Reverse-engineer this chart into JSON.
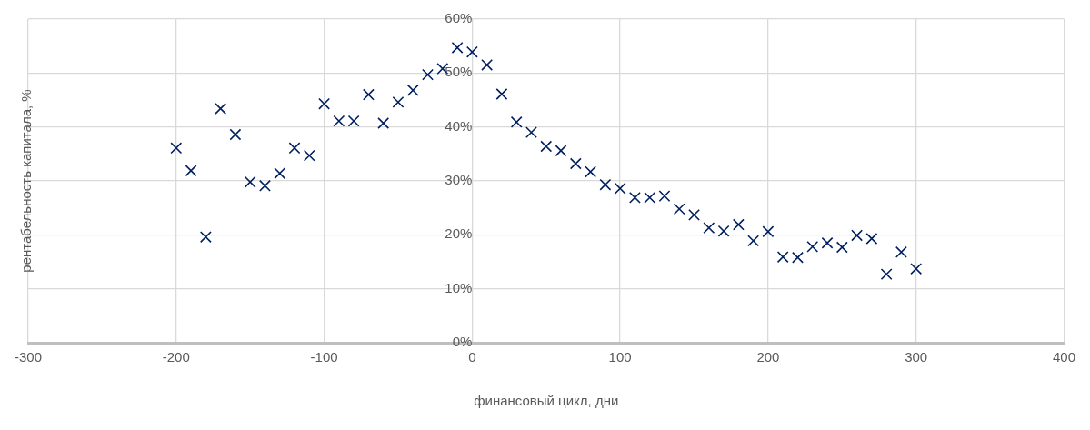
{
  "chart_data": {
    "type": "scatter",
    "xlabel": "финансовый цикл, дни",
    "ylabel": "рентабельность капитала, %",
    "x": [
      -200,
      -190,
      -180,
      -170,
      -160,
      -150,
      -140,
      -130,
      -120,
      -110,
      -100,
      -90,
      -80,
      -70,
      -60,
      -50,
      -40,
      -30,
      -20,
      -10,
      0,
      10,
      20,
      30,
      40,
      50,
      60,
      70,
      80,
      90,
      100,
      110,
      120,
      130,
      140,
      150,
      160,
      170,
      180,
      190,
      200,
      210,
      220,
      230,
      240,
      250,
      260,
      270,
      280,
      290,
      300
    ],
    "series": [
      {
        "color": "#002060",
        "values": [
          36.1,
          31.9,
          19.6,
          43.4,
          38.6,
          29.8,
          29.1,
          31.4,
          36.1,
          34.7,
          44.3,
          41.1,
          41.1,
          46,
          40.7,
          44.6,
          46.8,
          49.7,
          50.8,
          54.7,
          53.9,
          51.5,
          46.1,
          40.9,
          39,
          36.4,
          35.6,
          33.2,
          31.7,
          29.3,
          28.6,
          26.9,
          26.9,
          27.2,
          24.8,
          23.7,
          21.3,
          20.7,
          21.9,
          18.9,
          20.6,
          15.9,
          15.8,
          17.8,
          18.5,
          17.7,
          19.9,
          19.3,
          12.7,
          16.8,
          13.7
        ]
      }
    ],
    "xlim": [
      -300,
      400
    ],
    "xticks": [
      -300,
      -200,
      -100,
      0,
      100,
      200,
      300,
      400
    ],
    "ylim": [
      0,
      60
    ],
    "yticks": [
      {
        "value": 0,
        "label": "0%"
      },
      {
        "value": 10,
        "label": "10%"
      },
      {
        "value": 20,
        "label": "20%"
      },
      {
        "value": 30,
        "label": "30%"
      },
      {
        "value": 40,
        "label": "40%"
      },
      {
        "value": 50,
        "label": "50%"
      },
      {
        "value": 60,
        "label": "60%"
      }
    ],
    "grid": true,
    "legend": false,
    "marker": "cross"
  }
}
